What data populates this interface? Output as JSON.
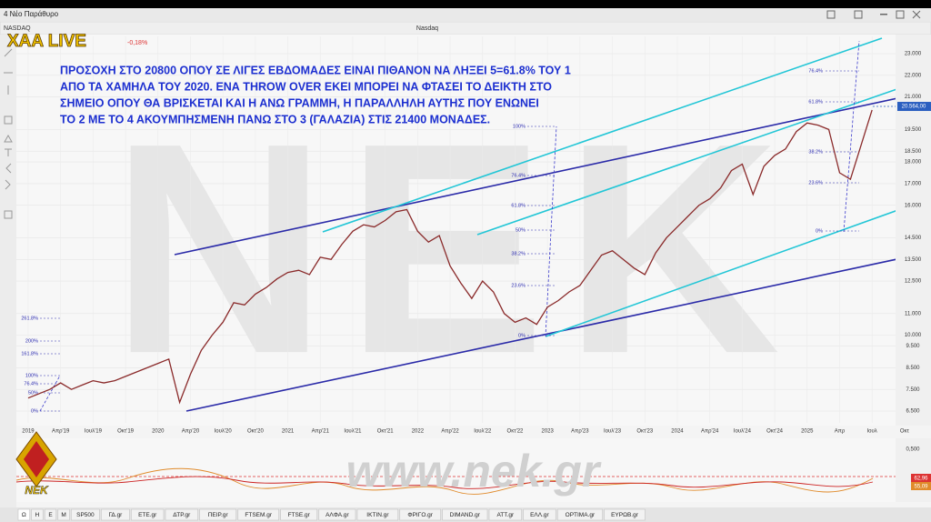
{
  "window": {
    "title": "4 Νέο Παράθυρο"
  },
  "toolbar": {
    "symbol": "NASDAQ",
    "chart_title": "Nasdaq"
  },
  "logo": {
    "brand": "XAA LIVE",
    "change": "-0,18%"
  },
  "annotation": [
    "ΠΡΟΣΟΧΗ ΣΤΟ 20800 ΟΠΟΥ ΣΕ ΛΙΓΕΣ ΕΒΔΟΜΑΔΕΣ ΕΙΝΑΙ ΠΙΘΑΝΟΝ ΝΑ ΛΗΞΕΙ 5=61.8% ΤΟΥ 1",
    "ΑΠΟ ΤΑ ΧΑΜΗΛΑ ΤΟΥ 2020. ΕΝΑ THROW OVER ΕΚΕΙ ΜΠΟΡΕΙ ΝΑ ΦΤΑΣΕΙ ΤΟ ΔΕΙΚΤΗ ΣΤΟ",
    "ΣΗΜΕΙΟ ΟΠΟΥ ΘΑ ΒΡΙΣΚΕΤΑΙ ΚΑΙ Η ΑΝΩ ΓΡΑΜΜΗ, Η ΠΑΡΑΛΛΗΛΗ ΑΥΤΗΣ ΠΟΥ ΕΝΩΝΕΙ",
    "ΤΟ 2 ΜΕ ΤΟ 4 ΑΚΟΥΜΠΗΣΜΕΝΗ ΠΑΝΩ ΣΤΟ 3 (ΓΑΛΑΖΙΑ) ΣΤΙΣ 21400 ΜΟΝΑΔΕΣ."
  ],
  "watermark": {
    "letters": "NEK",
    "url": "www.nek.gr",
    "badge": "NEK"
  },
  "fib_left": [
    "261.8%",
    "200%",
    "161.8%",
    "100%",
    "76.4%",
    "50%",
    "0%"
  ],
  "fib_mid": [
    "100%",
    "76.4%",
    "61.8%",
    "50%",
    "38.2%",
    "23.6%",
    "0%"
  ],
  "fib_right": [
    "76.4%",
    "61.8%",
    "38.2%",
    "23.6%",
    "0%"
  ],
  "chart_data": {
    "type": "line",
    "series": [
      {
        "name": "Nasdaq",
        "color": "#8a2a2a",
        "values": [
          7100,
          7300,
          7500,
          7800,
          7500,
          7700,
          7900,
          7800,
          7900,
          8100,
          8300,
          8500,
          8700,
          8900,
          6900,
          8200,
          9300,
          10000,
          10600,
          11500,
          11400,
          11900,
          12200,
          12600,
          12900,
          13000,
          12800,
          13600,
          13500,
          14200,
          14800,
          15100,
          15000,
          15300,
          15700,
          15800,
          14800,
          14300,
          14600,
          13200,
          12400,
          11700,
          12500,
          12000,
          11000,
          10600,
          10800,
          10500,
          11300,
          11600,
          12000,
          12300,
          13000,
          13700,
          13900,
          13500,
          13100,
          12800,
          13800,
          14500,
          15000,
          15500,
          16000,
          16300,
          16800,
          17600,
          17900,
          16500,
          17800,
          18300,
          18600,
          19400,
          19800,
          19700,
          19500,
          17500,
          17200,
          18800,
          20400
        ]
      }
    ],
    "xlim": [
      -1.09,
      80.17
    ],
    "xticks": [
      {
        "value": 0,
        "label": "2019"
      },
      {
        "value": 3,
        "label": "Απρ'19"
      },
      {
        "value": 6,
        "label": "Ιουλ'19"
      },
      {
        "value": 9,
        "label": "Οκτ'19"
      },
      {
        "value": 12,
        "label": "2020"
      },
      {
        "value": 15,
        "label": "Απρ'20"
      },
      {
        "value": 18,
        "label": "Ιουλ'20"
      },
      {
        "value": 21,
        "label": "Οκτ'20"
      },
      {
        "value": 24,
        "label": "2021"
      },
      {
        "value": 27,
        "label": "Απρ'21"
      },
      {
        "value": 30,
        "label": "Ιουλ'21"
      },
      {
        "value": 33,
        "label": "Οκτ'21"
      },
      {
        "value": 36,
        "label": "2022"
      },
      {
        "value": 39,
        "label": "Απρ'22"
      },
      {
        "value": 42,
        "label": "Ιουλ'22"
      },
      {
        "value": 45,
        "label": "Οκτ'22"
      },
      {
        "value": 48,
        "label": "2023"
      },
      {
        "value": 51,
        "label": "Απρ'23"
      },
      {
        "value": 54,
        "label": "Ιουλ'23"
      },
      {
        "value": 57,
        "label": "Οκτ'23"
      },
      {
        "value": 60,
        "label": "2024"
      },
      {
        "value": 63,
        "label": "Απρ'24"
      },
      {
        "value": 66,
        "label": "Ιουλ'24"
      },
      {
        "value": 69,
        "label": "Οκτ'24"
      },
      {
        "value": 72,
        "label": "2025"
      },
      {
        "value": 75,
        "label": "Απρ"
      },
      {
        "value": 78,
        "label": "Ιουλ"
      },
      {
        "value": 81,
        "label": "Οκτ"
      }
    ],
    "ylim": [
      5954,
      23798
    ],
    "yticks": [
      {
        "value": 23000,
        "label": "23.000"
      },
      {
        "value": 22000,
        "label": "22.000"
      },
      {
        "value": 21000,
        "label": "21.000"
      },
      {
        "value": 19500,
        "label": "19.500"
      },
      {
        "value": 18500,
        "label": "18.500"
      },
      {
        "value": 18000,
        "label": "18.000"
      },
      {
        "value": 17000,
        "label": "17.000"
      },
      {
        "value": 16000,
        "label": "16.000"
      },
      {
        "value": 14500,
        "label": "14.500"
      },
      {
        "value": 13500,
        "label": "13.500"
      },
      {
        "value": 12500,
        "label": "12.500"
      },
      {
        "value": 11000,
        "label": "11.000"
      },
      {
        "value": 10000,
        "label": "10.000"
      },
      {
        "value": 9500,
        "label": "9.500"
      },
      {
        "value": 8500,
        "label": "8.500"
      },
      {
        "value": 7500,
        "label": "7.500"
      },
      {
        "value": 6500,
        "label": "6.500"
      }
    ],
    "last_price": {
      "value": 20564,
      "label": "20.564,00"
    },
    "grid": true
  },
  "indicator": {
    "axis_label": "0,500",
    "value_a": "62,96",
    "value_b": "55,09"
  },
  "tabs": [
    "Ω",
    "H",
    "E",
    "M",
    "SP500",
    "ΓΔ.gr",
    "ETE.gr",
    "ΔΤΡ.gr",
    "ΠΕΙΡ.gr",
    "FTSEM.gr",
    "FTSE.gr",
    "ΑΛΦΑ.gr",
    "ΙΚΤΙΝ.gr",
    "ΦΡΙΓΟ.gr",
    "DIMAND.gr",
    "ATT.gr",
    "ΕΛΛ.gr",
    "OPTIMA.gr",
    "ΕΥΡΩΒ.gr"
  ]
}
